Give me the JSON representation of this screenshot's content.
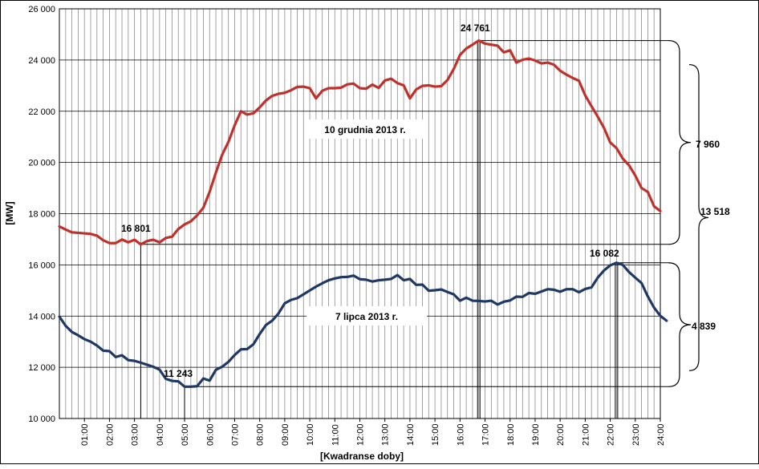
{
  "chart_data": {
    "type": "line",
    "xlabel": "[Kwadranse doby]",
    "ylabel": "[MW]",
    "ylim": [
      10000,
      26000
    ],
    "xlim": [
      0,
      96
    ],
    "y_ticks": [
      "10 000",
      "12 000",
      "14 000",
      "16 000",
      "18 000",
      "20 000",
      "22 000",
      "24 000",
      "26 000"
    ],
    "x_ticks": [
      "01:00",
      "02:00",
      "03:00",
      "04:00",
      "05:00",
      "06:00",
      "07:00",
      "08:00",
      "09:00",
      "10:00",
      "11:00",
      "12:00",
      "13:00",
      "14:00",
      "15:00",
      "16:00",
      "17:00",
      "18:00",
      "19:00",
      "20:00",
      "21:00",
      "22:00",
      "23:00",
      "24:00"
    ],
    "grid": true,
    "colors": {
      "winter": "#c0312b",
      "summer": "#1f3864"
    },
    "series": [
      {
        "name": "10 grudnia 2013 r.",
        "color": "#c0312b",
        "values": [
          17500,
          17380,
          17270,
          17250,
          17230,
          17210,
          17140,
          16960,
          16850,
          16850,
          16990,
          16880,
          16980,
          16801,
          16930,
          16980,
          16880,
          17050,
          17100,
          17400,
          17580,
          17700,
          17930,
          18230,
          18850,
          19600,
          20300,
          20800,
          21450,
          22000,
          21870,
          21920,
          22150,
          22420,
          22600,
          22680,
          22720,
          22820,
          22950,
          22960,
          22900,
          22500,
          22800,
          22900,
          22900,
          22920,
          23050,
          23080,
          22900,
          22880,
          23040,
          22910,
          23200,
          23270,
          23100,
          23010,
          22500,
          22850,
          22990,
          23010,
          22960,
          22980,
          23220,
          23650,
          24200,
          24450,
          24600,
          24761,
          24640,
          24600,
          24560,
          24300,
          24380,
          23900,
          24010,
          24060,
          23980,
          23870,
          23900,
          23820,
          23580,
          23430,
          23300,
          23190,
          22620,
          22200,
          21790,
          21350,
          20780,
          20560,
          20150,
          19890,
          19490,
          19000,
          18850,
          18290,
          18100
        ]
      },
      {
        "name": "7 lipca 2013 r.",
        "color": "#1f3864",
        "values": [
          13980,
          13620,
          13380,
          13250,
          13100,
          13000,
          12850,
          12650,
          12630,
          12400,
          12470,
          12280,
          12250,
          12180,
          12100,
          12020,
          11910,
          11550,
          11470,
          11450,
          11243,
          11243,
          11260,
          11560,
          11480,
          11900,
          12020,
          12210,
          12480,
          12700,
          12710,
          12900,
          13300,
          13650,
          13820,
          14100,
          14500,
          14630,
          14700,
          14850,
          15000,
          15150,
          15280,
          15400,
          15470,
          15520,
          15530,
          15580,
          15440,
          15420,
          15350,
          15400,
          15420,
          15450,
          15600,
          15400,
          15450,
          15220,
          15230,
          14990,
          15010,
          15040,
          14940,
          14850,
          14600,
          14720,
          14600,
          14590,
          14570,
          14600,
          14450,
          14560,
          14610,
          14760,
          14750,
          14900,
          14870,
          14960,
          15050,
          15030,
          14950,
          15050,
          15050,
          14930,
          15060,
          15120,
          15500,
          15780,
          15980,
          16082,
          16000,
          15720,
          15500,
          15290,
          14770,
          14330,
          14010,
          13820
        ]
      }
    ],
    "annotations": {
      "winter_min": "16 801",
      "winter_max": "24 761",
      "summer_min": "11 243",
      "summer_max": "16 082",
      "winter_range": "7 960",
      "summer_range": "4 839",
      "total_range": "13 518"
    }
  }
}
